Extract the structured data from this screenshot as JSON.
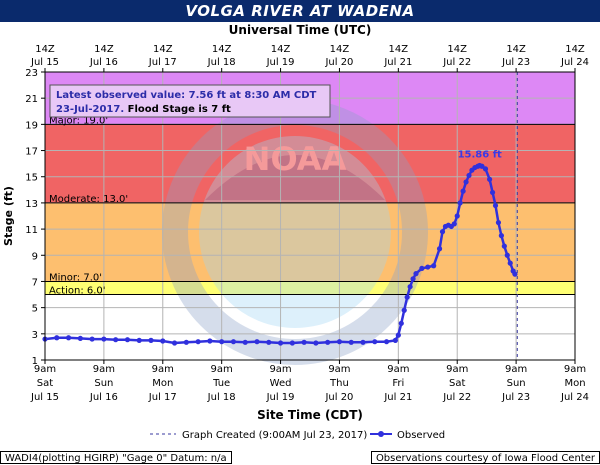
{
  "title": "VOLGA RIVER AT WADENA",
  "top_axis_title": "Universal Time (UTC)",
  "top_ticks": [
    {
      "l1": "14Z",
      "l2": "Jul 15"
    },
    {
      "l1": "14Z",
      "l2": "Jul 16"
    },
    {
      "l1": "14Z",
      "l2": "Jul 17"
    },
    {
      "l1": "14Z",
      "l2": "Jul 18"
    },
    {
      "l1": "14Z",
      "l2": "Jul 19"
    },
    {
      "l1": "14Z",
      "l2": "Jul 20"
    },
    {
      "l1": "14Z",
      "l2": "Jul 21"
    },
    {
      "l1": "14Z",
      "l2": "Jul 22"
    },
    {
      "l1": "14Z",
      "l2": "Jul 23"
    },
    {
      "l1": "14Z",
      "l2": "Jul 24"
    }
  ],
  "bottom_ticks": [
    {
      "l1": "9am",
      "l2": "Sat",
      "l3": "Jul 15"
    },
    {
      "l1": "9am",
      "l2": "Sun",
      "l3": "Jul 16"
    },
    {
      "l1": "9am",
      "l2": "Mon",
      "l3": "Jul 17"
    },
    {
      "l1": "9am",
      "l2": "Tue",
      "l3": "Jul 18"
    },
    {
      "l1": "9am",
      "l2": "Wed",
      "l3": "Jul 19"
    },
    {
      "l1": "9am",
      "l2": "Thu",
      "l3": "Jul 20"
    },
    {
      "l1": "9am",
      "l2": "Fri",
      "l3": "Jul 21"
    },
    {
      "l1": "9am",
      "l2": "Sat",
      "l3": "Jul 22"
    },
    {
      "l1": "9am",
      "l2": "Sun",
      "l3": "Jul 23"
    },
    {
      "l1": "9am",
      "l2": "Mon",
      "l3": "Jul 24"
    }
  ],
  "info_box": {
    "line1": "Latest observed value: 7.56 ft at 8:30 AM CDT",
    "line2_date": "23-Jul-2017.",
    "line2_flood": "Flood Stage is 7 ft"
  },
  "footer": {
    "left": "WADI4(plotting HGIRP) \"Gage 0\" Datum: n/a",
    "right": "Observations courtesy of Iowa Flood Center"
  },
  "watermark": "NOAA",
  "colors": {
    "major": "#dd88f5",
    "major_to_moderate": "#f06464",
    "moderate_to_minor": "#fdbf6f",
    "minor_to_action": "#ffff74",
    "observed": "#3030dd",
    "crest_label": "#3a3ae6",
    "title_bar": "#0a2a6c"
  },
  "chart_data": {
    "type": "line",
    "title": "VOLGA RIVER AT WADENA",
    "xlabel": "Site Time (CDT)",
    "ylabel": "Stage (ft)",
    "x_units": "days since 9am CDT Sat Jul 15 2017",
    "xlim": [
      0,
      9
    ],
    "ylim": [
      1,
      23
    ],
    "yticks": [
      1,
      3,
      5,
      7,
      9,
      11,
      13,
      15,
      17,
      19,
      21,
      23
    ],
    "grid": true,
    "thresholds": [
      {
        "name": "Major",
        "label": "Major: 19.0'",
        "value": 19.0
      },
      {
        "name": "Moderate",
        "label": "Moderate: 13.0'",
        "value": 13.0
      },
      {
        "name": "Minor",
        "label": "Minor: 7.0'",
        "value": 7.0
      },
      {
        "name": "Action",
        "label": "Action: 6.0'",
        "value": 6.0
      }
    ],
    "graph_created_x": 8.02,
    "crest_label": "15.86 ft",
    "crest": {
      "x": 7.38,
      "y": 15.86
    },
    "latest": {
      "x": 7.98,
      "y": 7.56
    },
    "legend": [
      {
        "name": "Graph Created (9:00AM Jul 23, 2017)",
        "style": "dashed"
      },
      {
        "name": "Observed",
        "style": "line-dot"
      }
    ],
    "series": [
      {
        "name": "Observed",
        "x": [
          0.0,
          0.2,
          0.4,
          0.6,
          0.8,
          1.0,
          1.2,
          1.4,
          1.6,
          1.8,
          2.0,
          2.2,
          2.4,
          2.6,
          2.8,
          3.0,
          3.2,
          3.4,
          3.6,
          3.8,
          4.0,
          4.2,
          4.4,
          4.6,
          4.8,
          5.0,
          5.2,
          5.4,
          5.6,
          5.8,
          5.95,
          6.0,
          6.05,
          6.1,
          6.15,
          6.2,
          6.25,
          6.3,
          6.4,
          6.5,
          6.6,
          6.7,
          6.75,
          6.8,
          6.85,
          6.9,
          6.95,
          7.0,
          7.05,
          7.1,
          7.15,
          7.2,
          7.25,
          7.3,
          7.35,
          7.38,
          7.42,
          7.48,
          7.55,
          7.6,
          7.65,
          7.7,
          7.75,
          7.8,
          7.85,
          7.9,
          7.95,
          7.98
        ],
        "y": [
          2.6,
          2.7,
          2.7,
          2.65,
          2.6,
          2.6,
          2.55,
          2.55,
          2.5,
          2.5,
          2.45,
          2.3,
          2.35,
          2.4,
          2.45,
          2.4,
          2.4,
          2.35,
          2.4,
          2.35,
          2.3,
          2.3,
          2.35,
          2.3,
          2.35,
          2.4,
          2.35,
          2.35,
          2.4,
          2.4,
          2.5,
          2.9,
          3.8,
          4.8,
          5.8,
          6.6,
          7.2,
          7.6,
          8.0,
          8.1,
          8.2,
          9.5,
          10.8,
          11.2,
          11.3,
          11.2,
          11.4,
          12.0,
          13.0,
          13.9,
          14.6,
          15.1,
          15.5,
          15.7,
          15.8,
          15.86,
          15.8,
          15.6,
          14.8,
          13.8,
          12.8,
          11.5,
          10.5,
          9.7,
          9.0,
          8.4,
          7.8,
          7.56
        ]
      }
    ]
  }
}
